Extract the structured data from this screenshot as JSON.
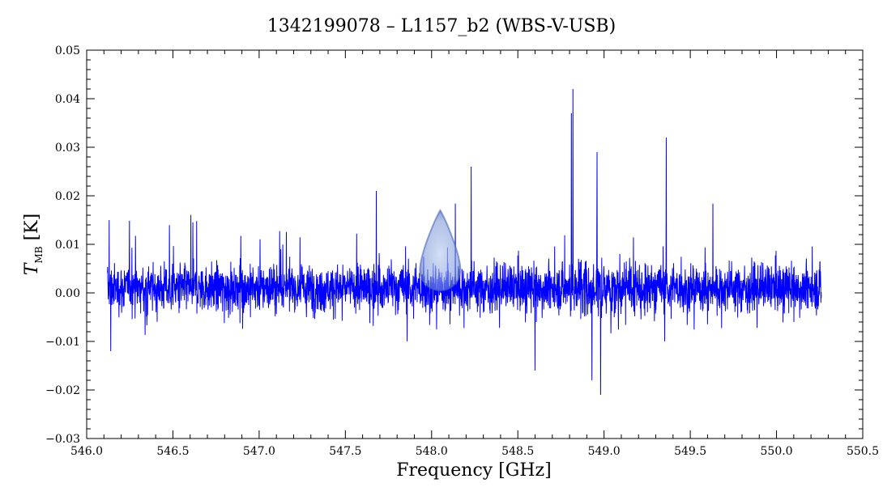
{
  "chart_data": {
    "type": "line",
    "title": "1342199078 – L1157_b2 (WBS-V-USB)",
    "xlabel": "Frequency [GHz]",
    "ylabel": {
      "main": "T",
      "sub": "MB",
      "unit": "[K]"
    },
    "xlim": [
      546.0,
      550.5
    ],
    "ylim": [
      -0.03,
      0.05
    ],
    "x_ticks": [
      "546.0",
      "546.5",
      "547.0",
      "547.5",
      "548.0",
      "548.5",
      "549.0",
      "549.5",
      "550.0",
      "550.5"
    ],
    "y_ticks": [
      "−0.03",
      "−0.02",
      "−0.01",
      "0.00",
      "0.01",
      "0.02",
      "0.03",
      "0.04",
      "0.05"
    ],
    "grid": false,
    "series": [
      {
        "color": "#0000ff",
        "x_range": [
          546.12,
          550.26
        ],
        "baseline": 0.001,
        "noise_sigma": 0.0045,
        "peaks": [
          {
            "x": 546.13,
            "y": 0.015
          },
          {
            "x": 546.14,
            "y": -0.012
          },
          {
            "x": 547.68,
            "y": 0.021
          },
          {
            "x": 548.23,
            "y": 0.026
          },
          {
            "x": 548.82,
            "y": 0.042
          },
          {
            "x": 548.81,
            "y": 0.037
          },
          {
            "x": 548.96,
            "y": 0.029
          },
          {
            "x": 548.98,
            "y": -0.021
          },
          {
            "x": 549.36,
            "y": 0.032
          },
          {
            "x": 548.6,
            "y": -0.016
          },
          {
            "x": 548.93,
            "y": -0.018
          }
        ]
      }
    ]
  },
  "annotation": {
    "icon": "droplet-marker-icon",
    "x": 548.05,
    "color": "#4060c0"
  }
}
